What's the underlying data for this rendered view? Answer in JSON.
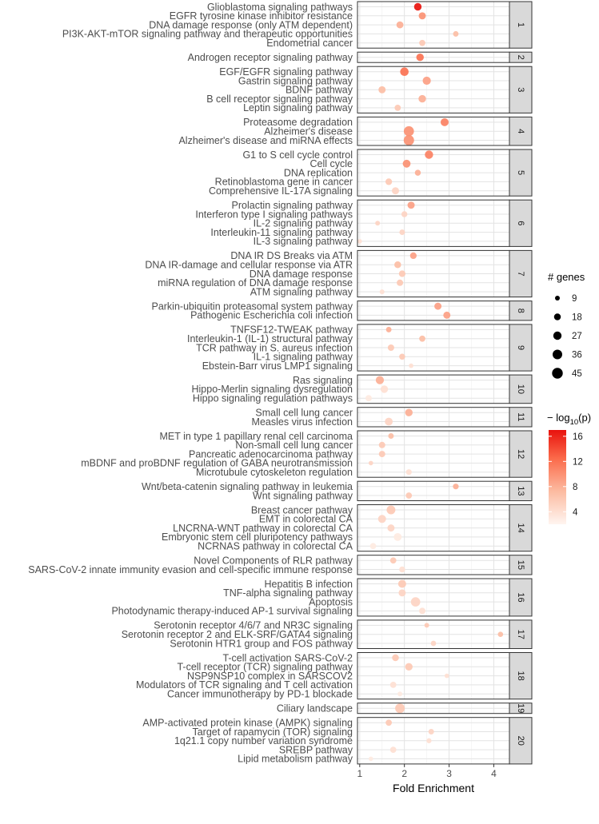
{
  "chart_data": {
    "type": "scatter",
    "xlabel": "Fold Enrichment",
    "xlim": [
      0.95,
      4.35
    ],
    "x_ticks": [
      1,
      2,
      3,
      4
    ],
    "size_legend": {
      "title": "# genes",
      "values": [
        9,
        18,
        27,
        36,
        45
      ]
    },
    "color_legend": {
      "title_prefix": "− log",
      "title_sub": "10",
      "title_suffix": "(p)",
      "ticks": [
        4,
        8,
        12,
        16
      ],
      "range": [
        2,
        17
      ],
      "low_color": "#fff5f0",
      "high_color": "#e8120d"
    },
    "panels": [
      {
        "label": "1",
        "rows": [
          {
            "term": "Glioblastoma signaling pathways",
            "fe": 2.3,
            "genes": 22,
            "p": 17
          },
          {
            "term": "EGFR tyrosine kinase inhibitor resistance",
            "fe": 2.4,
            "genes": 20,
            "p": 10
          },
          {
            "term": "DNA damage response (only ATM dependent)",
            "fe": 1.9,
            "genes": 19,
            "p": 8
          },
          {
            "term": "PI3K-AKT-mTOR signaling pathway and therapeutic opportunities",
            "fe": 3.15,
            "genes": 12,
            "p": 7
          },
          {
            "term": "Endometrial cancer",
            "fe": 2.4,
            "genes": 15,
            "p": 6
          }
        ]
      },
      {
        "label": "2",
        "rows": [
          {
            "term": "Androgen receptor signaling pathway",
            "fe": 2.35,
            "genes": 22,
            "p": 12
          }
        ]
      },
      {
        "label": "3",
        "rows": [
          {
            "term": "EGF/EGFR signaling pathway",
            "fe": 2.0,
            "genes": 28,
            "p": 12
          },
          {
            "term": "Gastrin signaling pathway",
            "fe": 2.5,
            "genes": 26,
            "p": 9
          },
          {
            "term": "BDNF pathway",
            "fe": 1.5,
            "genes": 20,
            "p": 7
          },
          {
            "term": "B cell receptor signaling pathway",
            "fe": 2.4,
            "genes": 22,
            "p": 8
          },
          {
            "term": "Leptin signaling pathway",
            "fe": 1.85,
            "genes": 15,
            "p": 6
          }
        ]
      },
      {
        "label": "4",
        "rows": [
          {
            "term": "Proteasome degradation",
            "fe": 2.9,
            "genes": 25,
            "p": 11
          },
          {
            "term": "Alzheimer's disease",
            "fe": 2.1,
            "genes": 40,
            "p": 10
          },
          {
            "term": "Alzheimer's disease and miRNA effects",
            "fe": 2.1,
            "genes": 42,
            "p": 10
          }
        ]
      },
      {
        "label": "5",
        "rows": [
          {
            "term": "G1 to S cell cycle control",
            "fe": 2.55,
            "genes": 27,
            "p": 11
          },
          {
            "term": "Cell cycle",
            "fe": 2.05,
            "genes": 24,
            "p": 10
          },
          {
            "term": "DNA replication",
            "fe": 2.3,
            "genes": 14,
            "p": 8
          },
          {
            "term": "Retinoblastoma gene in cancer",
            "fe": 1.65,
            "genes": 17,
            "p": 6
          },
          {
            "term": "Comprehensive IL-17A signaling",
            "fe": 1.8,
            "genes": 20,
            "p": 5
          }
        ]
      },
      {
        "label": "6",
        "rows": [
          {
            "term": "Prolactin signaling pathway",
            "fe": 2.15,
            "genes": 20,
            "p": 9
          },
          {
            "term": "Interferon type I signaling pathways",
            "fe": 2.0,
            "genes": 14,
            "p": 5
          },
          {
            "term": "IL-2 signaling pathway",
            "fe": 1.4,
            "genes": 9,
            "p": 5
          },
          {
            "term": "Interleukin-11 signaling pathway",
            "fe": 1.95,
            "genes": 12,
            "p": 5
          },
          {
            "term": "IL-3 signaling pathway",
            "fe": 1.0,
            "genes": 8,
            "p": 4
          }
        ]
      },
      {
        "label": "7",
        "rows": [
          {
            "term": "DNA IR DS Breaks via ATM",
            "fe": 2.2,
            "genes": 17,
            "p": 9
          },
          {
            "term": "DNA IR-damage and cellular response via ATR",
            "fe": 1.85,
            "genes": 18,
            "p": 7
          },
          {
            "term": "DNA damage response",
            "fe": 1.95,
            "genes": 17,
            "p": 6
          },
          {
            "term": "miRNA regulation of DNA damage response",
            "fe": 1.9,
            "genes": 16,
            "p": 6
          },
          {
            "term": "ATM signaling pathway",
            "fe": 1.5,
            "genes": 9,
            "p": 4
          }
        ]
      },
      {
        "label": "8",
        "rows": [
          {
            "term": "Parkin-ubiquitin proteasomal system pathway",
            "fe": 2.75,
            "genes": 20,
            "p": 9
          },
          {
            "term": "Pathogenic Escherichia coli infection",
            "fe": 2.95,
            "genes": 20,
            "p": 9
          }
        ]
      },
      {
        "label": "9",
        "rows": [
          {
            "term": "TNFSF12-TWEAK pathway",
            "fe": 1.65,
            "genes": 12,
            "p": 8
          },
          {
            "term": "Interleukin-1 (IL-1) structural pathway",
            "fe": 2.4,
            "genes": 15,
            "p": 7
          },
          {
            "term": "TCR pathway in S. aureus infection",
            "fe": 1.7,
            "genes": 16,
            "p": 6
          },
          {
            "term": "IL-1 signaling pathway",
            "fe": 1.95,
            "genes": 14,
            "p": 6
          },
          {
            "term": "Ebstein-Barr virus LMP1 signaling",
            "fe": 2.15,
            "genes": 8,
            "p": 4
          }
        ]
      },
      {
        "label": "10",
        "rows": [
          {
            "term": "Ras signaling",
            "fe": 1.45,
            "genes": 26,
            "p": 8
          },
          {
            "term": "Hippo-Merlin signaling dysregulation",
            "fe": 1.55,
            "genes": 22,
            "p": 4
          },
          {
            "term": "Hippo signaling regulation pathways",
            "fe": 1.2,
            "genes": 16,
            "p": 3
          }
        ]
      },
      {
        "label": "11",
        "rows": [
          {
            "term": "Small cell lung cancer",
            "fe": 2.1,
            "genes": 22,
            "p": 8
          },
          {
            "term": "Measles virus infection",
            "fe": 1.65,
            "genes": 24,
            "p": 5
          }
        ]
      },
      {
        "label": "12",
        "rows": [
          {
            "term": "MET in type 1 papillary renal cell carcinoma",
            "fe": 1.7,
            "genes": 12,
            "p": 7
          },
          {
            "term": "Non-small cell lung cancer",
            "fe": 1.5,
            "genes": 16,
            "p": 6
          },
          {
            "term": "Pancreatic adenocarcinoma pathway",
            "fe": 1.5,
            "genes": 16,
            "p": 6
          },
          {
            "term": "mBDNF and proBDNF regulation of GABA neurotransmission",
            "fe": 1.25,
            "genes": 8,
            "p": 5
          },
          {
            "term": "Microtubule cytoskeleton regulation",
            "fe": 2.1,
            "genes": 13,
            "p": 4
          }
        ]
      },
      {
        "label": "13",
        "rows": [
          {
            "term": "Wnt/beta-catenin signaling pathway in leukemia",
            "fe": 3.15,
            "genes": 13,
            "p": 8
          },
          {
            "term": "Wnt signaling pathway",
            "fe": 2.1,
            "genes": 15,
            "p": 6
          }
        ]
      },
      {
        "label": "14",
        "rows": [
          {
            "term": "Breast cancer pathway",
            "fe": 1.7,
            "genes": 30,
            "p": 6
          },
          {
            "term": "EMT in colorectal CA",
            "fe": 1.5,
            "genes": 25,
            "p": 5
          },
          {
            "term": "LNCRNA-WNT pathway in colorectal CA",
            "fe": 1.7,
            "genes": 20,
            "p": 5
          },
          {
            "term": "Embryonic stem cell pluripotency pathways",
            "fe": 1.85,
            "genes": 24,
            "p": 3
          },
          {
            "term": "NCRNAS pathway in colorectal CA",
            "fe": 1.3,
            "genes": 15,
            "p": 3
          }
        ]
      },
      {
        "label": "15",
        "rows": [
          {
            "term": "Novel Components of RLR pathway",
            "fe": 1.75,
            "genes": 15,
            "p": 6
          },
          {
            "term": "SARS-CoV-2 innate immunity evasion and cell-specific immune response",
            "fe": 1.95,
            "genes": 14,
            "p": 4
          }
        ]
      },
      {
        "label": "16",
        "rows": [
          {
            "term": "Hepatitis B infection",
            "fe": 1.95,
            "genes": 25,
            "p": 6
          },
          {
            "term": "TNF-alpha signaling pathway",
            "fe": 1.95,
            "genes": 20,
            "p": 5
          },
          {
            "term": "Apoptosis",
            "fe": 2.25,
            "genes": 34,
            "p": 5
          },
          {
            "term": "Photodynamic therapy-induced AP-1 survival signaling",
            "fe": 2.4,
            "genes": 16,
            "p": 4
          }
        ]
      },
      {
        "label": "17",
        "rows": [
          {
            "term": "Serotonin receptor 4/6/7 and NR3C signaling",
            "fe": 2.5,
            "genes": 9,
            "p": 6
          },
          {
            "term": "Serotonin receptor 2 and ELK-SRF/GATA4 signaling",
            "fe": 4.15,
            "genes": 11,
            "p": 7
          },
          {
            "term": "Serotonin HTR1 group and FOS pathway",
            "fe": 2.65,
            "genes": 11,
            "p": 5
          }
        ]
      },
      {
        "label": "18",
        "rows": [
          {
            "term": "T-cell activation SARS-CoV-2",
            "fe": 1.8,
            "genes": 18,
            "p": 6
          },
          {
            "term": "T-cell receptor (TCR) signaling pathway",
            "fe": 2.1,
            "genes": 22,
            "p": 6
          },
          {
            "term": "NSP9NSP10 complex in SARSCOV2",
            "fe": 2.95,
            "genes": 8,
            "p": 4
          },
          {
            "term": "Modulators of TCR signaling and T cell activation",
            "fe": 1.75,
            "genes": 15,
            "p": 4
          },
          {
            "term": "Cancer immunotherapy by PD-1 blockade",
            "fe": 1.9,
            "genes": 9,
            "p": 3
          }
        ]
      },
      {
        "label": "19",
        "rows": [
          {
            "term": "Ciliary landscape",
            "fe": 1.9,
            "genes": 36,
            "p": 6
          }
        ]
      },
      {
        "label": "20",
        "rows": [
          {
            "term": "AMP-activated protein kinase (AMPK) signaling",
            "fe": 1.65,
            "genes": 15,
            "p": 6
          },
          {
            "term": "Target of rapamycin (TOR) signaling",
            "fe": 2.6,
            "genes": 12,
            "p": 5
          },
          {
            "term": "1q21.1 copy number variation syndrome",
            "fe": 2.55,
            "genes": 10,
            "p": 4
          },
          {
            "term": "SREBP pathway",
            "fe": 1.75,
            "genes": 15,
            "p": 4
          },
          {
            "term": "Lipid metabolism pathway",
            "fe": 1.25,
            "genes": 8,
            "p": 3
          }
        ]
      }
    ]
  }
}
